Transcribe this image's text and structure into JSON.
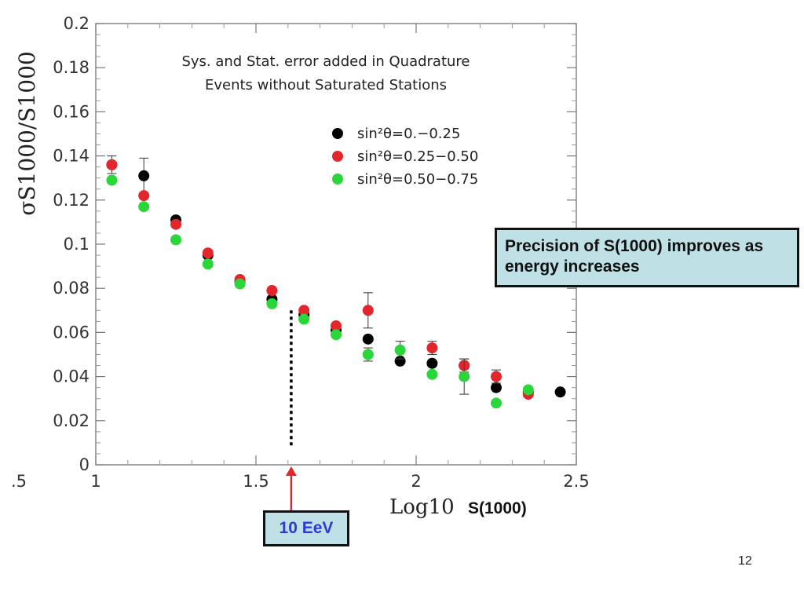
{
  "chart_data": {
    "type": "scatter",
    "title_lines": [
      "Sys. and Stat. error added in Quadrature",
      "Events without Saturated Stations"
    ],
    "ylabel": "σS1000/S1000",
    "xlabel": "Log10",
    "xlim": [
      1,
      2.5
    ],
    "ylim": [
      0,
      0.2
    ],
    "x_ticks": [
      {
        "value": 0.5,
        "label": ".5"
      },
      {
        "value": 1,
        "label": "1"
      },
      {
        "value": 1.5,
        "label": "1.5"
      },
      {
        "value": 2,
        "label": "2"
      },
      {
        "value": 2.5,
        "label": "2.5"
      }
    ],
    "y_ticks": [
      {
        "value": 0,
        "label": "0"
      },
      {
        "value": 0.02,
        "label": "0.02"
      },
      {
        "value": 0.04,
        "label": "0.04"
      },
      {
        "value": 0.06,
        "label": "0.06"
      },
      {
        "value": 0.08,
        "label": "0.08"
      },
      {
        "value": 0.1,
        "label": "0.1"
      },
      {
        "value": 0.12,
        "label": "0.12"
      },
      {
        "value": 0.14,
        "label": "0.14"
      },
      {
        "value": 0.16,
        "label": "0.16"
      },
      {
        "value": 0.18,
        "label": "0.18"
      },
      {
        "value": 0.2,
        "label": "0.2"
      }
    ],
    "legend_position": "top-right",
    "series": [
      {
        "name": "sin²θ=0.−0.25",
        "color": "#000000",
        "points": [
          {
            "x": 1.05,
            "y": 0.136,
            "err": 0
          },
          {
            "x": 1.15,
            "y": 0.131,
            "err": 0.008
          },
          {
            "x": 1.25,
            "y": 0.111,
            "err": 0
          },
          {
            "x": 1.35,
            "y": 0.095,
            "err": 0
          },
          {
            "x": 1.45,
            "y": 0.083,
            "err": 0
          },
          {
            "x": 1.55,
            "y": 0.075,
            "err": 0
          },
          {
            "x": 1.65,
            "y": 0.068,
            "err": 0
          },
          {
            "x": 1.75,
            "y": 0.061,
            "err": 0
          },
          {
            "x": 1.85,
            "y": 0.057,
            "err": 0
          },
          {
            "x": 1.95,
            "y": 0.047,
            "err": 0
          },
          {
            "x": 2.05,
            "y": 0.046,
            "err": 0
          },
          {
            "x": 2.15,
            "y": 0.045,
            "err": 0
          },
          {
            "x": 2.25,
            "y": 0.035,
            "err": 0
          },
          {
            "x": 2.35,
            "y": 0.033,
            "err": 0
          },
          {
            "x": 2.45,
            "y": 0.033,
            "err": 0
          }
        ]
      },
      {
        "name": "sin²θ=0.25−0.50",
        "color": "#e3252c",
        "points": [
          {
            "x": 1.05,
            "y": 0.136,
            "err": 0.004
          },
          {
            "x": 1.15,
            "y": 0.122,
            "err": 0
          },
          {
            "x": 1.25,
            "y": 0.109,
            "err": 0
          },
          {
            "x": 1.35,
            "y": 0.096,
            "err": 0
          },
          {
            "x": 1.45,
            "y": 0.084,
            "err": 0
          },
          {
            "x": 1.55,
            "y": 0.079,
            "err": 0
          },
          {
            "x": 1.65,
            "y": 0.07,
            "err": 0
          },
          {
            "x": 1.75,
            "y": 0.063,
            "err": 0
          },
          {
            "x": 1.85,
            "y": 0.07,
            "err": 0.008
          },
          {
            "x": 2.05,
            "y": 0.053,
            "err": 0.003
          },
          {
            "x": 2.15,
            "y": 0.045,
            "err": 0.003
          },
          {
            "x": 2.25,
            "y": 0.04,
            "err": 0.003
          },
          {
            "x": 2.35,
            "y": 0.032,
            "err": 0
          }
        ]
      },
      {
        "name": "sin²θ=0.50−0.75",
        "color": "#2bd63a",
        "points": [
          {
            "x": 1.05,
            "y": 0.129,
            "err": 0
          },
          {
            "x": 1.15,
            "y": 0.117,
            "err": 0
          },
          {
            "x": 1.25,
            "y": 0.102,
            "err": 0
          },
          {
            "x": 1.35,
            "y": 0.091,
            "err": 0
          },
          {
            "x": 1.45,
            "y": 0.082,
            "err": 0
          },
          {
            "x": 1.55,
            "y": 0.073,
            "err": 0
          },
          {
            "x": 1.65,
            "y": 0.066,
            "err": 0
          },
          {
            "x": 1.75,
            "y": 0.059,
            "err": 0
          },
          {
            "x": 1.85,
            "y": 0.05,
            "err": 0.003
          },
          {
            "x": 1.95,
            "y": 0.052,
            "err": 0.004
          },
          {
            "x": 2.05,
            "y": 0.041,
            "err": 0
          },
          {
            "x": 2.15,
            "y": 0.04,
            "err": 0.008
          },
          {
            "x": 2.25,
            "y": 0.028,
            "err": 0
          },
          {
            "x": 2.35,
            "y": 0.034,
            "err": 0
          }
        ]
      }
    ],
    "annotations": [
      {
        "type": "vertical-dotted-line",
        "x": 1.61,
        "y_top": 0.07,
        "color": "#000000"
      },
      {
        "type": "arrow",
        "x": 1.61,
        "color": "#e3252c"
      }
    ]
  },
  "callout": {
    "text": "Precision of S(1000) improves as energy increases"
  },
  "xlabel_unit": "S(1000)",
  "energy_marker": {
    "label": "10 EeV"
  },
  "slide_number": "12"
}
